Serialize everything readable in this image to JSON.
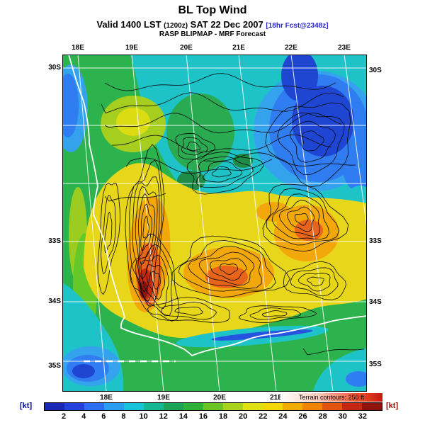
{
  "header": {
    "title": "BL Top Wind",
    "valid": {
      "prefix": "Valid 1400 LST",
      "zulu": "(1200z)",
      "date": "SAT 22 Dec 2007",
      "fcst": "[18hr Fcst@2348z]"
    },
    "model_line": "RASP BLIPMAP - MRF Forecast"
  },
  "map": {
    "top_lon_labels": [
      "18E",
      "19E",
      "20E",
      "21E",
      "22E",
      "23E"
    ],
    "bottom_lon_labels": [
      "18E",
      "19E",
      "20E",
      "21E"
    ],
    "left_lat_labels": [
      "30S",
      "33S",
      "34S",
      "35S"
    ],
    "right_lat_labels": [
      "30S",
      "33S",
      "34S",
      "35S"
    ]
  },
  "colorbar": {
    "unit_left": "[kt]",
    "unit_left_color": "#0000b4",
    "unit_right": "[kt]",
    "unit_right_color": "#8e130c",
    "ticks": [
      "2",
      "4",
      "6",
      "8",
      "10",
      "12",
      "14",
      "16",
      "18",
      "20",
      "22",
      "24",
      "26",
      "28",
      "30",
      "32"
    ],
    "colors": [
      "#1a28b4",
      "#2342dc",
      "#2d6ef0",
      "#2b9cf0",
      "#17c3da",
      "#16b894",
      "#1ea256",
      "#30b238",
      "#6cc426",
      "#a8d21c",
      "#dfe112",
      "#f2d800",
      "#f2ae00",
      "#ee8400",
      "#e25510",
      "#c62614",
      "#8e130c"
    ],
    "terrain_note": "Terrain contours: 250 ft"
  },
  "chart_data": {
    "type": "heatmap",
    "title": "BL Top Wind",
    "units": "kt",
    "scale_ticks": [
      2,
      4,
      6,
      8,
      10,
      12,
      14,
      16,
      18,
      20,
      22,
      24,
      26,
      28,
      30,
      32
    ],
    "lon_range": [
      "18E",
      "23E"
    ],
    "lat_range": [
      "30S",
      "35S"
    ],
    "description": "Filled contours of boundary-layer top wind speed over the Western Cape, South Africa. Light winds (blue, <8 kt) offshore northeast and southwest corners and along the NW coast; strong winds (orange-red, 24-32+ kt) over the central interior mountains with a dark-red maximum (>32 kt) near 19.3E 34S. Black terrain contours every 250 ft; white lat/lon graticule and coastline."
  }
}
